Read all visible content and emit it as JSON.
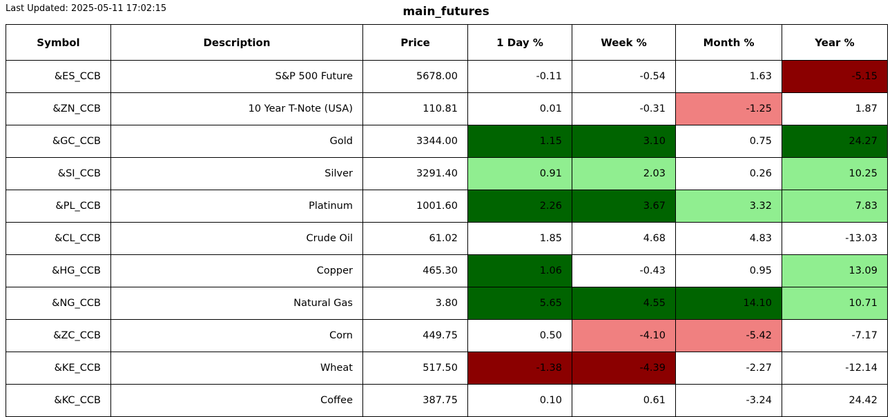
{
  "header": {
    "last_updated": "Last Updated: 2025-05-11 17:02:15",
    "title": "main_futures"
  },
  "colors": {
    "neutral": "#ffffff",
    "up": "#90EE90",
    "strong_up": "#006400",
    "down": "#F08080",
    "strong_down": "#8B0000"
  },
  "table": {
    "columns": [
      "Symbol",
      "Description",
      "Price",
      "1 Day %",
      "Week %",
      "Month %",
      "Year %"
    ],
    "rows": [
      {
        "symbol": "&ES_CCB",
        "description": "S&P 500 Future",
        "price": "5678.00",
        "changes": [
          {
            "value": "-0.11",
            "color": "neutral"
          },
          {
            "value": "-0.54",
            "color": "neutral"
          },
          {
            "value": "1.63",
            "color": "neutral"
          },
          {
            "value": "-5.15",
            "color": "strong_down"
          }
        ]
      },
      {
        "symbol": "&ZN_CCB",
        "description": "10 Year T-Note (USA)",
        "price": "110.81",
        "changes": [
          {
            "value": "0.01",
            "color": "neutral"
          },
          {
            "value": "-0.31",
            "color": "neutral"
          },
          {
            "value": "-1.25",
            "color": "down"
          },
          {
            "value": "1.87",
            "color": "neutral"
          }
        ]
      },
      {
        "symbol": "&GC_CCB",
        "description": "Gold",
        "price": "3344.00",
        "changes": [
          {
            "value": "1.15",
            "color": "strong_up"
          },
          {
            "value": "3.10",
            "color": "strong_up"
          },
          {
            "value": "0.75",
            "color": "neutral"
          },
          {
            "value": "24.27",
            "color": "strong_up"
          }
        ]
      },
      {
        "symbol": "&SI_CCB",
        "description": "Silver",
        "price": "3291.40",
        "changes": [
          {
            "value": "0.91",
            "color": "up"
          },
          {
            "value": "2.03",
            "color": "up"
          },
          {
            "value": "0.26",
            "color": "neutral"
          },
          {
            "value": "10.25",
            "color": "up"
          }
        ]
      },
      {
        "symbol": "&PL_CCB",
        "description": "Platinum",
        "price": "1001.60",
        "changes": [
          {
            "value": "2.26",
            "color": "strong_up"
          },
          {
            "value": "3.67",
            "color": "strong_up"
          },
          {
            "value": "3.32",
            "color": "up"
          },
          {
            "value": "7.83",
            "color": "up"
          }
        ]
      },
      {
        "symbol": "&CL_CCB",
        "description": "Crude Oil",
        "price": "61.02",
        "changes": [
          {
            "value": "1.85",
            "color": "neutral"
          },
          {
            "value": "4.68",
            "color": "neutral"
          },
          {
            "value": "4.83",
            "color": "neutral"
          },
          {
            "value": "-13.03",
            "color": "neutral"
          }
        ]
      },
      {
        "symbol": "&HG_CCB",
        "description": "Copper",
        "price": "465.30",
        "changes": [
          {
            "value": "1.06",
            "color": "strong_up"
          },
          {
            "value": "-0.43",
            "color": "neutral"
          },
          {
            "value": "0.95",
            "color": "neutral"
          },
          {
            "value": "13.09",
            "color": "up"
          }
        ]
      },
      {
        "symbol": "&NG_CCB",
        "description": "Natural Gas",
        "price": "3.80",
        "changes": [
          {
            "value": "5.65",
            "color": "strong_up"
          },
          {
            "value": "4.55",
            "color": "strong_up"
          },
          {
            "value": "14.10",
            "color": "strong_up"
          },
          {
            "value": "10.71",
            "color": "up"
          }
        ]
      },
      {
        "symbol": "&ZC_CCB",
        "description": "Corn",
        "price": "449.75",
        "changes": [
          {
            "value": "0.50",
            "color": "neutral"
          },
          {
            "value": "-4.10",
            "color": "down"
          },
          {
            "value": "-5.42",
            "color": "down"
          },
          {
            "value": "-7.17",
            "color": "neutral"
          }
        ]
      },
      {
        "symbol": "&KE_CCB",
        "description": "Wheat",
        "price": "517.50",
        "changes": [
          {
            "value": "-1.38",
            "color": "strong_down"
          },
          {
            "value": "-4.39",
            "color": "strong_down"
          },
          {
            "value": "-2.27",
            "color": "neutral"
          },
          {
            "value": "-12.14",
            "color": "neutral"
          }
        ]
      },
      {
        "symbol": "&KC_CCB",
        "description": "Coffee",
        "price": "387.75",
        "changes": [
          {
            "value": "0.10",
            "color": "neutral"
          },
          {
            "value": "0.61",
            "color": "neutral"
          },
          {
            "value": "-3.24",
            "color": "neutral"
          },
          {
            "value": "24.42",
            "color": "neutral"
          }
        ]
      }
    ]
  }
}
